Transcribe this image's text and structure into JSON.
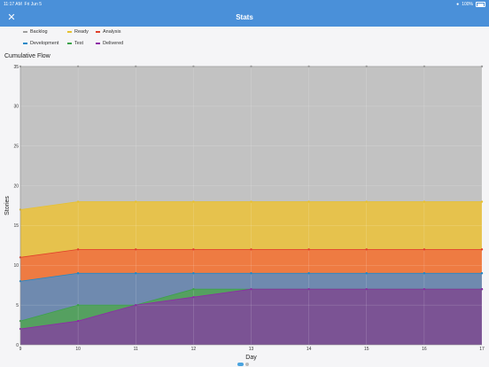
{
  "status_bar": {
    "time": "11:17 AM",
    "date": "Fri Jun 5",
    "battery": "100%"
  },
  "nav": {
    "title": "Stats",
    "close_icon": "close-icon"
  },
  "legend": [
    {
      "name": "Backlog",
      "color": "#9e9e9e"
    },
    {
      "name": "Ready",
      "color": "#e6c12f"
    },
    {
      "name": "Analysis",
      "color": "#e0402a"
    },
    {
      "name": "Development",
      "color": "#1e88c8"
    },
    {
      "name": "Test",
      "color": "#3ca24a"
    },
    {
      "name": "Delivered",
      "color": "#8e2aa6"
    }
  ],
  "chart_data": {
    "type": "area",
    "title": "Cumulative Flow",
    "xlabel": "Day",
    "ylabel": "Stories",
    "x": [
      9,
      10,
      11,
      12,
      13,
      14,
      15,
      16,
      17
    ],
    "ylim": [
      0,
      35
    ],
    "yticks": [
      0,
      5,
      10,
      15,
      20,
      25,
      30,
      35
    ],
    "grid": true,
    "legend_position": "top",
    "series": [
      {
        "name": "Backlog",
        "values": [
          35,
          35,
          35,
          35,
          35,
          35,
          35,
          35,
          35
        ],
        "color": "#c2c2c2",
        "line": "#9e9e9e"
      },
      {
        "name": "Ready",
        "values": [
          17,
          18,
          18,
          18,
          18,
          18,
          18,
          18,
          18
        ],
        "color": "#e6c24d",
        "line": "#e6c12f"
      },
      {
        "name": "Analysis",
        "values": [
          11,
          12,
          12,
          12,
          12,
          12,
          12,
          12,
          12
        ],
        "color": "#ee7b42",
        "line": "#e0402a"
      },
      {
        "name": "Development",
        "values": [
          8,
          9,
          9,
          9,
          9,
          9,
          9,
          9,
          9
        ],
        "color": "#6f8aaf",
        "line": "#1e88c8"
      },
      {
        "name": "Test",
        "values": [
          3,
          5,
          5,
          7,
          7,
          7,
          7,
          7,
          7
        ],
        "color": "#55a060",
        "line": "#3ca24a"
      },
      {
        "name": "Delivered",
        "values": [
          2,
          3,
          5,
          6,
          7,
          7,
          7,
          7,
          7
        ],
        "color": "#7b5394",
        "line": "#8e2aa6"
      }
    ]
  },
  "pager": {
    "pages": 2,
    "active": 0
  }
}
